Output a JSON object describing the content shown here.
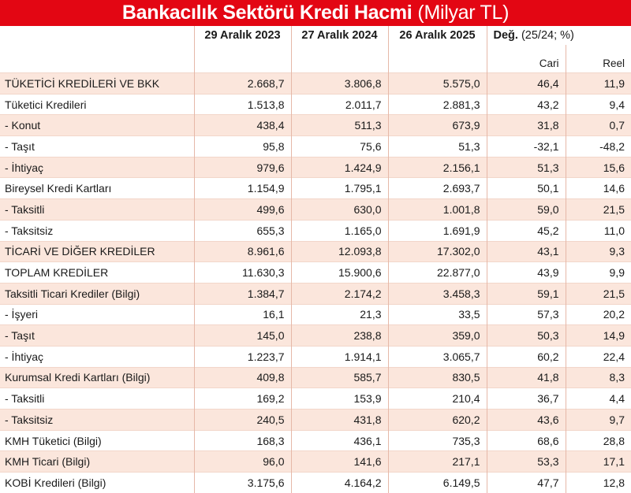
{
  "title": {
    "bold": "Bankacılık Sektörü Kredi Hacmi",
    "unit": "(Milyar TL)"
  },
  "header": {
    "col1": "29 Aralık 2023",
    "col2": "27 Aralık 2024",
    "col3": "26 Aralık 2025",
    "change_label": "Değ.",
    "change_unit": "(25/24; %)",
    "cari": "Cari",
    "reel": "Reel"
  },
  "rows": [
    [
      "TÜKETİCİ KREDİLERİ VE BKK",
      "2.668,7",
      "3.806,8",
      "5.575,0",
      "46,4",
      "11,9"
    ],
    [
      "Tüketici Kredileri",
      "1.513,8",
      "2.011,7",
      "2.881,3",
      "43,2",
      "9,4"
    ],
    [
      "- Konut",
      "438,4",
      "511,3",
      "673,9",
      "31,8",
      "0,7"
    ],
    [
      "- Taşıt",
      "95,8",
      "75,6",
      "51,3",
      "-32,1",
      "-48,2"
    ],
    [
      "- İhtiyaç",
      "979,6",
      "1.424,9",
      "2.156,1",
      "51,3",
      "15,6"
    ],
    [
      "Bireysel Kredi Kartları",
      "1.154,9",
      "1.795,1",
      "2.693,7",
      "50,1",
      "14,6"
    ],
    [
      "- Taksitli",
      "499,6",
      "630,0",
      "1.001,8",
      "59,0",
      "21,5"
    ],
    [
      "- Taksitsiz",
      "655,3",
      "1.165,0",
      "1.691,9",
      "45,2",
      "11,0"
    ],
    [
      "TİCARİ VE DİĞER KREDİLER",
      "8.961,6",
      "12.093,8",
      "17.302,0",
      "43,1",
      "9,3"
    ],
    [
      "TOPLAM KREDİLER",
      "11.630,3",
      "15.900,6",
      "22.877,0",
      "43,9",
      "9,9"
    ],
    [
      "Taksitli Ticari Krediler (Bilgi)",
      "1.384,7",
      "2.174,2",
      "3.458,3",
      "59,1",
      "21,5"
    ],
    [
      "- İşyeri",
      "16,1",
      "21,3",
      "33,5",
      "57,3",
      "20,2"
    ],
    [
      "- Taşıt",
      "145,0",
      "238,8",
      "359,0",
      "50,3",
      "14,9"
    ],
    [
      "- İhtiyaç",
      "1.223,7",
      "1.914,1",
      "3.065,7",
      "60,2",
      "22,4"
    ],
    [
      "Kurumsal Kredi Kartları (Bilgi)",
      "409,8",
      "585,7",
      "830,5",
      "41,8",
      "8,3"
    ],
    [
      "- Taksitli",
      "169,2",
      "153,9",
      "210,4",
      "36,7",
      "4,4"
    ],
    [
      "- Taksitsiz",
      "240,5",
      "431,8",
      "620,2",
      "43,6",
      "9,7"
    ],
    [
      "KMH Tüketici (Bilgi)",
      "168,3",
      "436,1",
      "735,3",
      "68,6",
      "28,8"
    ],
    [
      "KMH Ticari (Bilgi)",
      "96,0",
      "141,6",
      "217,1",
      "53,3",
      "17,1"
    ],
    [
      "KOBİ Kredileri (Bilgi)",
      "3.175,6",
      "4.164,2",
      "6.149,5",
      "47,7",
      "12,8"
    ]
  ]
}
